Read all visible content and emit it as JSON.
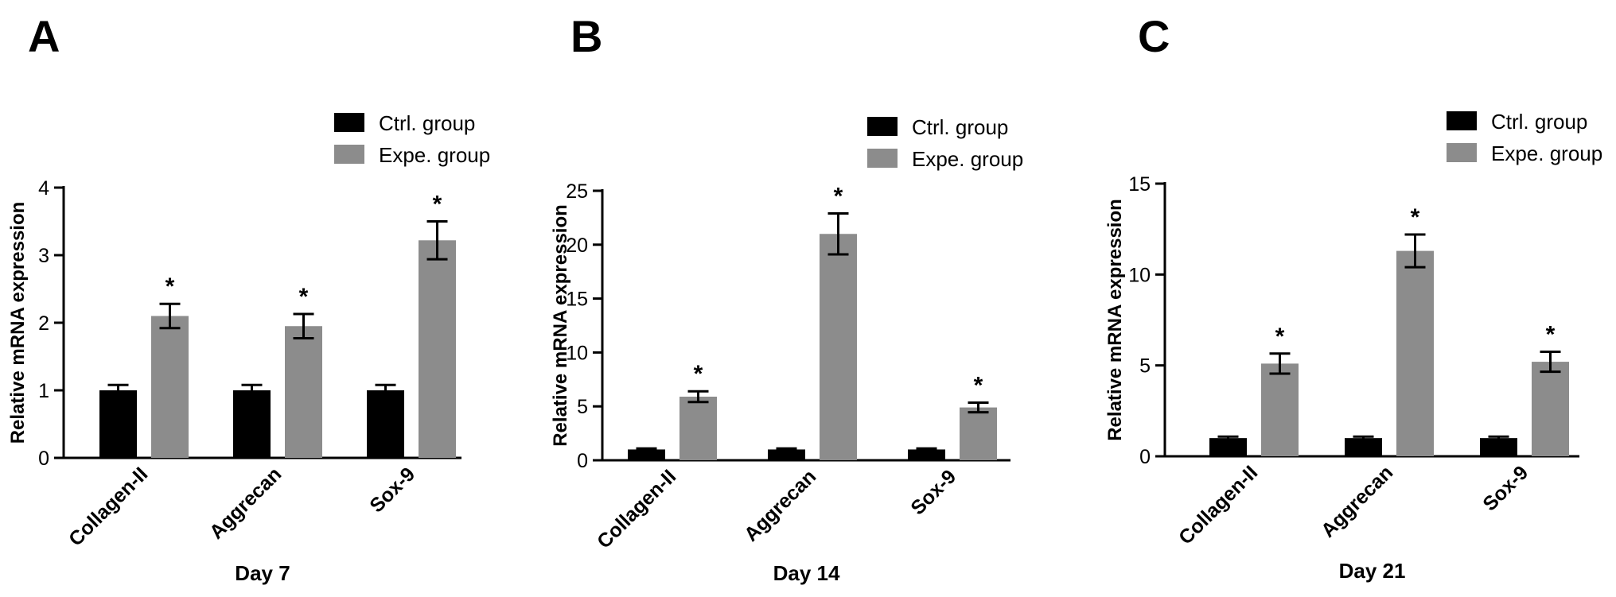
{
  "figure": {
    "panels": [
      "A",
      "B",
      "C"
    ]
  },
  "legend": {
    "ctrl_label": "Ctrl. group",
    "expe_label": "Expe. group"
  },
  "colors": {
    "ctrl": "#000000",
    "expe": "#8c8c8c",
    "axis": "#000000",
    "text": "#000000"
  },
  "chart_data": [
    {
      "type": "bar",
      "panel_label": "A",
      "categories": [
        "Collagen-II",
        "Aggrecan",
        "Sox-9"
      ],
      "series": [
        {
          "name": "Ctrl. group",
          "values": [
            1.0,
            1.0,
            1.0
          ],
          "errors": [
            0.08,
            0.08,
            0.08
          ]
        },
        {
          "name": "Expe. group",
          "values": [
            2.1,
            1.95,
            3.22
          ],
          "errors": [
            0.18,
            0.18,
            0.28
          ]
        }
      ],
      "significance": [
        "*",
        "*",
        "*"
      ],
      "xlabel": "Day 7",
      "ylabel": "Relative mRNA expression",
      "ylim": [
        0,
        4
      ],
      "yticks": [
        0,
        1,
        2,
        3,
        4
      ],
      "grid": false,
      "legend_position": "top-right"
    },
    {
      "type": "bar",
      "panel_label": "B",
      "categories": [
        "Collagen-II",
        "Aggrecan",
        "Sox-9"
      ],
      "series": [
        {
          "name": "Ctrl. group",
          "values": [
            1.0,
            1.0,
            1.0
          ],
          "errors": [
            0.1,
            0.1,
            0.1
          ]
        },
        {
          "name": "Expe. group",
          "values": [
            5.9,
            21.0,
            4.9
          ],
          "errors": [
            0.5,
            1.9,
            0.45
          ]
        }
      ],
      "significance": [
        "*",
        "*",
        "*"
      ],
      "xlabel": "Day 14",
      "ylabel": "Relative mRNA expression",
      "ylim": [
        0,
        25
      ],
      "yticks": [
        0,
        5,
        10,
        15,
        20,
        25
      ],
      "grid": false,
      "legend_position": "top-right"
    },
    {
      "type": "bar",
      "panel_label": "C",
      "categories": [
        "Collagen-II",
        "Aggrecan",
        "Sox-9"
      ],
      "series": [
        {
          "name": "Ctrl. group",
          "values": [
            1.0,
            1.0,
            1.0
          ],
          "errors": [
            0.08,
            0.08,
            0.08
          ]
        },
        {
          "name": "Expe. group",
          "values": [
            5.1,
            11.3,
            5.2
          ],
          "errors": [
            0.55,
            0.9,
            0.55
          ]
        }
      ],
      "significance": [
        "*",
        "*",
        "*"
      ],
      "xlabel": "Day 21",
      "ylabel": "Relative mRNA expression",
      "ylim": [
        0,
        15
      ],
      "yticks": [
        0,
        5,
        10,
        15
      ],
      "grid": false,
      "legend_position": "top-right"
    }
  ]
}
